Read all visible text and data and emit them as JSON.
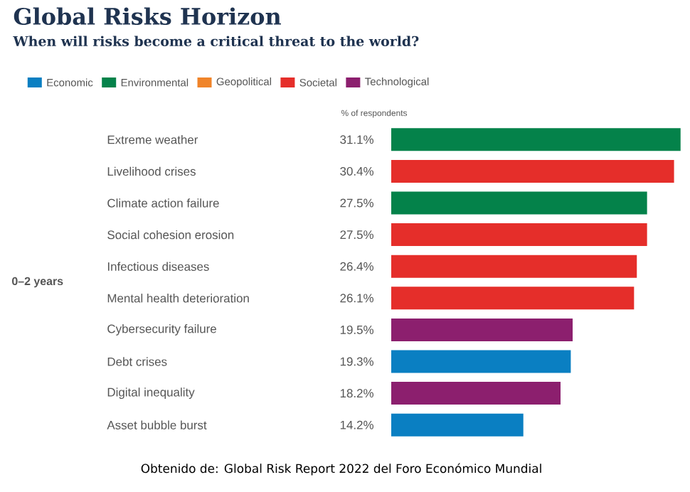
{
  "chart_data": {
    "type": "bar",
    "orientation": "horizontal",
    "title": "Global Risks Horizon",
    "subtitle": "When will risks become a critical threat to the world?",
    "xlabel": "% of respondents",
    "ylabel": "0–2 years",
    "categories": [
      "Extreme weather",
      "Livelihood crises",
      "Climate action failure",
      "Social cohesion erosion",
      "Infectious diseases",
      "Mental health deterioration",
      "Cybersecurity failure",
      "Debt crises",
      "Digital inequality",
      "Asset bubble burst"
    ],
    "series": [
      {
        "name": "Economic",
        "color": "#0a7fc2",
        "values": [
          null,
          null,
          null,
          null,
          null,
          null,
          null,
          19.3,
          null,
          14.2
        ],
        "value_labels": [
          null,
          null,
          null,
          null,
          null,
          null,
          null,
          "19.3%",
          null,
          "14.2%"
        ]
      },
      {
        "name": "Environmental",
        "color": "#04824a",
        "values": [
          31.1,
          null,
          27.5,
          null,
          null,
          null,
          null,
          null,
          null,
          null
        ],
        "value_labels": [
          "31.1%",
          null,
          "27.5%",
          null,
          null,
          null,
          null,
          null,
          null,
          null
        ]
      },
      {
        "name": "Geopolitical",
        "color": "#f0842a",
        "values": [
          null,
          null,
          null,
          null,
          null,
          null,
          null,
          null,
          null,
          null
        ],
        "value_labels": [
          null,
          null,
          null,
          null,
          null,
          null,
          null,
          null,
          null,
          null
        ]
      },
      {
        "name": "Societal",
        "color": "#e52e2a",
        "values": [
          null,
          30.4,
          null,
          27.5,
          26.4,
          26.1,
          null,
          null,
          null,
          null
        ],
        "value_labels": [
          null,
          "30.4%",
          null,
          "27.5%",
          "26.4%",
          "26.1%",
          null,
          null,
          null,
          null
        ]
      },
      {
        "name": "Technological",
        "color": "#8c1f6e",
        "values": [
          null,
          null,
          null,
          null,
          null,
          null,
          19.5,
          null,
          18.2,
          null
        ],
        "value_labels": [
          null,
          null,
          null,
          null,
          null,
          null,
          "19.5%",
          null,
          "18.2%",
          null
        ]
      }
    ],
    "legend": "top left",
    "annotations": [
      "Obtenido de: Global Risk Report 2022 del Foro Económico Mundial"
    ]
  }
}
